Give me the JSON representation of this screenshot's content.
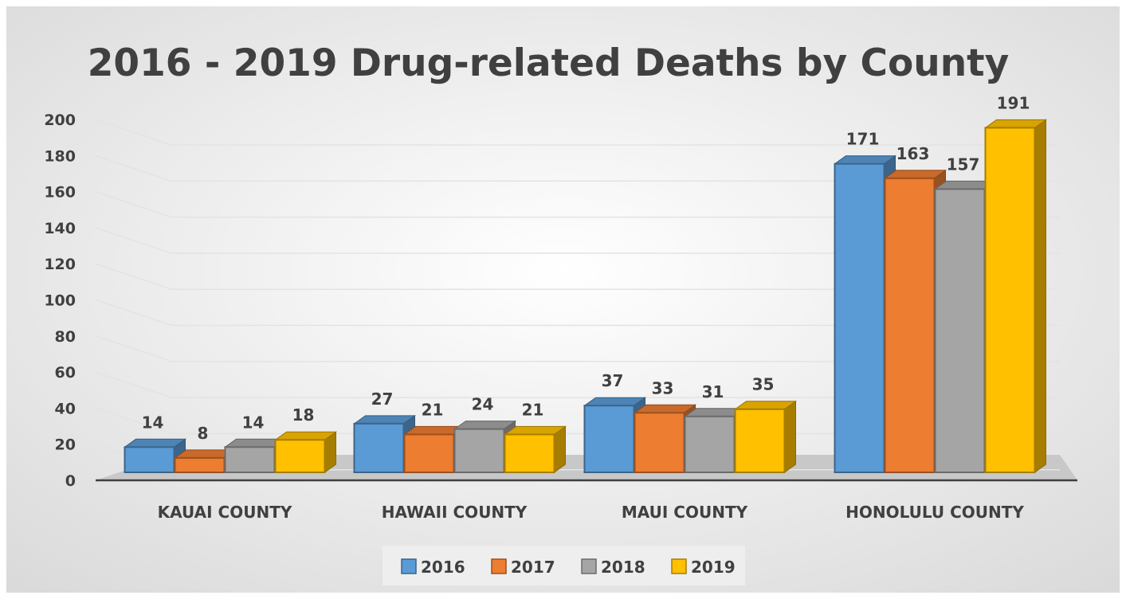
{
  "chart_data": {
    "type": "bar",
    "title": "2016 - 2019 Drug-related Deaths by County",
    "categories": [
      "KAUAI COUNTY",
      "HAWAII COUNTY",
      "MAUI COUNTY",
      "HONOLULU COUNTY"
    ],
    "series": [
      {
        "name": "2016",
        "values": [
          14,
          27,
          37,
          171
        ],
        "color": "#5B9BD5"
      },
      {
        "name": "2017",
        "values": [
          8,
          21,
          33,
          163
        ],
        "color": "#ED7D31"
      },
      {
        "name": "2018",
        "values": [
          14,
          24,
          31,
          157
        ],
        "color": "#A5A5A5"
      },
      {
        "name": "2019",
        "values": [
          18,
          21,
          35,
          191
        ],
        "color": "#FFC000"
      }
    ],
    "ylim": [
      0,
      200
    ],
    "yticks": [
      "0",
      "20",
      "40",
      "60",
      "80",
      "100",
      "120",
      "140",
      "160",
      "180",
      "200"
    ],
    "grid": true,
    "legend": "bottom",
    "style": "3d-clustered-column"
  }
}
